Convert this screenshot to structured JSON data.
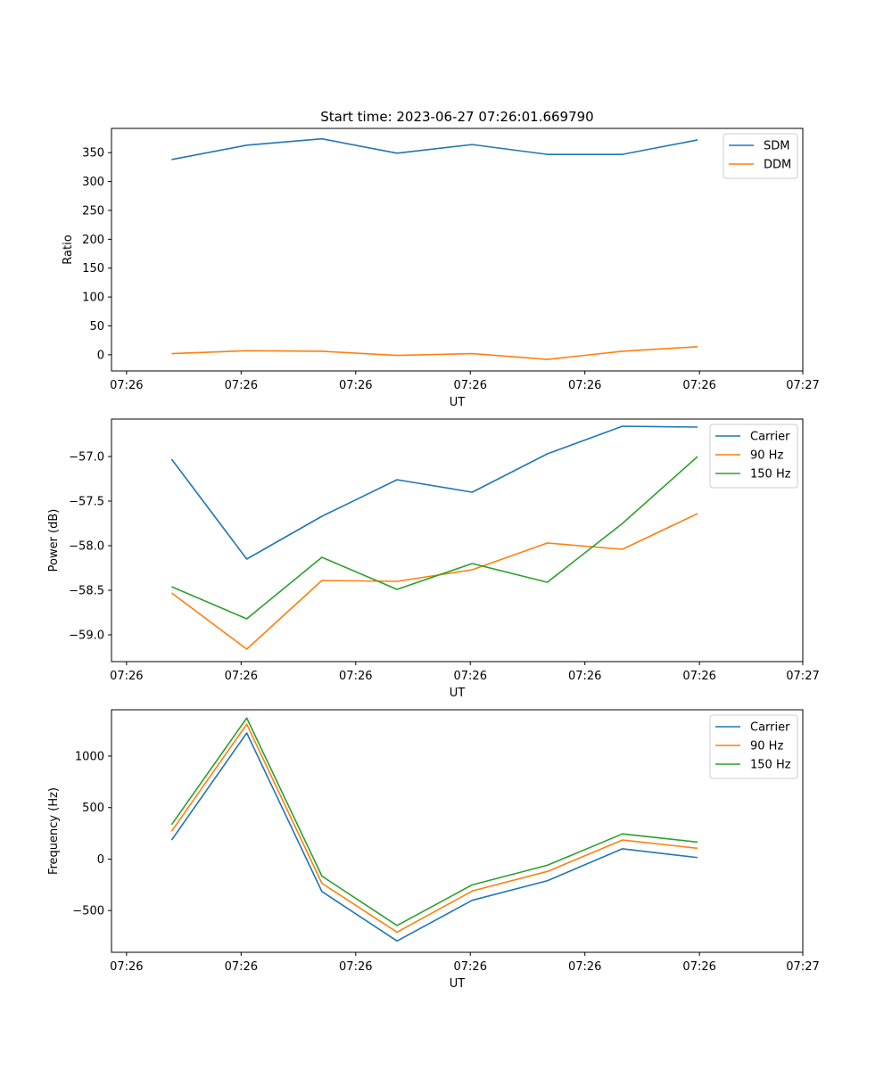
{
  "title": "Start time: 2023-06-27 07:26:01.669790",
  "chart_data": [
    {
      "type": "line",
      "title": "Start time: 2023-06-27 07:26:01.669790",
      "xlabel": "UT",
      "ylabel": "Ratio",
      "x_ticks": [
        "07:26",
        "07:26",
        "07:26",
        "07:26",
        "07:26",
        "07:26",
        "07:27"
      ],
      "y_ticks": [
        "0",
        "50",
        "100",
        "150",
        "200",
        "250",
        "300",
        "350"
      ],
      "ylim": [
        -28,
        392
      ],
      "x": [
        1,
        2,
        3,
        4,
        5,
        6,
        7,
        8
      ],
      "xlim": [
        0.2,
        9.4
      ],
      "legend": "top-right",
      "series": [
        {
          "name": "SDM",
          "color": "#1f77b4",
          "values": [
            338,
            363,
            374,
            349,
            364,
            347,
            347,
            372
          ]
        },
        {
          "name": "DDM",
          "color": "#ff7f0e",
          "values": [
            2,
            7,
            6,
            -1,
            2,
            -8,
            6,
            14
          ]
        }
      ]
    },
    {
      "type": "line",
      "xlabel": "UT",
      "ylabel": "Power (dB)",
      "x_ticks": [
        "07:26",
        "07:26",
        "07:26",
        "07:26",
        "07:26",
        "07:26",
        "07:27"
      ],
      "y_ticks": [
        "−59.0",
        "−58.5",
        "−58.0",
        "−57.5",
        "−57.0"
      ],
      "ylim": [
        -59.3,
        -56.58
      ],
      "x": [
        1,
        2,
        3,
        4,
        5,
        6,
        7,
        8
      ],
      "xlim": [
        0.2,
        9.4
      ],
      "legend": "top-right",
      "series": [
        {
          "name": "Carrier",
          "color": "#1f77b4",
          "values": [
            -57.03,
            -58.15,
            -57.67,
            -57.26,
            -57.4,
            -56.97,
            -56.66,
            -56.67
          ]
        },
        {
          "name": "90 Hz",
          "color": "#ff7f0e",
          "values": [
            -58.53,
            -59.16,
            -58.39,
            -58.4,
            -58.27,
            -57.97,
            -58.04,
            -57.64
          ]
        },
        {
          "name": "150 Hz",
          "color": "#2ca02c",
          "values": [
            -58.46,
            -58.82,
            -58.13,
            -58.49,
            -58.2,
            -58.41,
            -57.75,
            -57.0
          ]
        }
      ]
    },
    {
      "type": "line",
      "xlabel": "UT",
      "ylabel": "Frequency (Hz)",
      "x_ticks": [
        "07:26",
        "07:26",
        "07:26",
        "07:26",
        "07:26",
        "07:26",
        "07:27"
      ],
      "y_ticks": [
        "−500",
        "0",
        "500",
        "1000"
      ],
      "ylim": [
        -905,
        1450
      ],
      "x": [
        1,
        2,
        3,
        4,
        5,
        6,
        7,
        8
      ],
      "xlim": [
        0.2,
        9.4
      ],
      "legend": "top-right",
      "series": [
        {
          "name": "Carrier",
          "color": "#1f77b4",
          "values": [
            185,
            1225,
            -315,
            -795,
            -400,
            -210,
            100,
            15
          ]
        },
        {
          "name": "90 Hz",
          "color": "#ff7f0e",
          "values": [
            270,
            1310,
            -235,
            -710,
            -310,
            -120,
            185,
            105
          ]
        },
        {
          "name": "150 Hz",
          "color": "#2ca02c",
          "values": [
            335,
            1370,
            -165,
            -645,
            -250,
            -60,
            245,
            165
          ]
        }
      ]
    }
  ]
}
